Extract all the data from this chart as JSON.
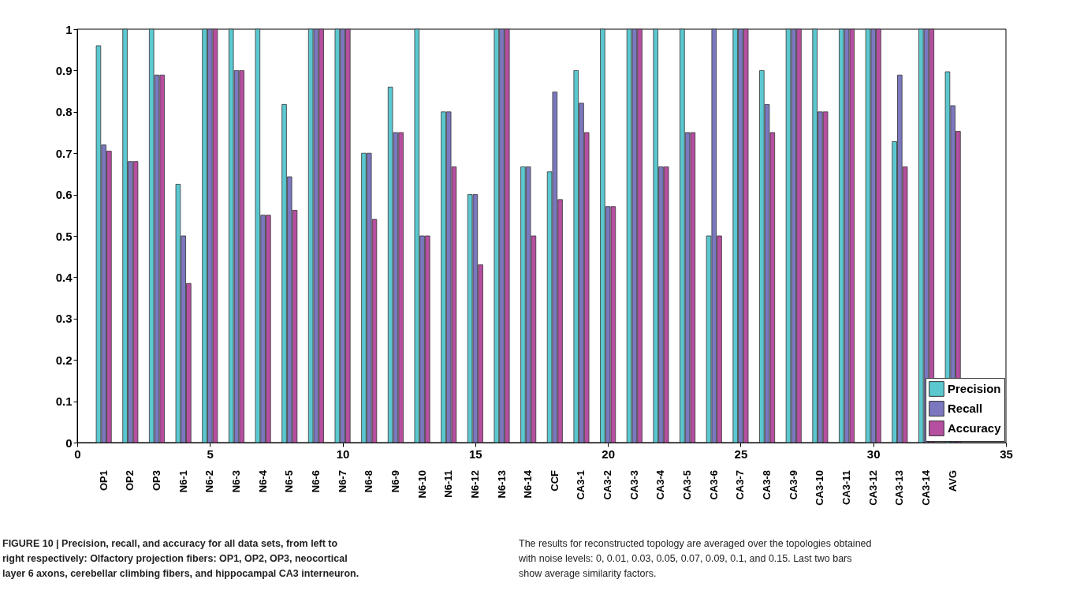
{
  "chart_data": {
    "type": "bar",
    "title": "FIGURE 10 | Precision, recall, and accuracy for all data sets, from left to right respectively: Olfactory projection fibers: OP1, OP2, OP3, neocortical layer 6 axons, cerebellar climbing fibers, and hippocampal CA3 interneuron.",
    "annotations": [
      "OP1",
      "OP2",
      "OP3",
      "N6-1",
      "N6-2",
      "N6-3",
      "N6-4",
      "N6-5",
      "N6-6",
      "N6-7",
      "N6-8",
      "N6-9",
      "N6-10",
      "N6-11",
      "N6-12",
      "N6-13",
      "N6-14",
      "CCF",
      "CA3-1",
      "CA3-2",
      "CA3-3",
      "CA3-4",
      "CA3-5",
      "CA3-6",
      "CA3-7",
      "CA3-8",
      "CA3-9",
      "CA3-10",
      "CA3-11",
      "CA3-12",
      "CA3-13",
      "CA3-14",
      "AVG",
      "The results for reconstructed topology are averaged over the topologies obtained with noise levels: 0, 0.01, 0.03, 0.05, 0.07, 0.09, 0.1, and 0.15. Last two bars show average similarity factors."
    ],
    "x": [
      1,
      2,
      3,
      4,
      5,
      6,
      7,
      8,
      9,
      10,
      11,
      12,
      13,
      14,
      15,
      16,
      17,
      18,
      19,
      20,
      21,
      22,
      23,
      24,
      25,
      26,
      27,
      28,
      29,
      30,
      31,
      32,
      33
    ],
    "series": [
      {
        "name": "Precision",
        "color": "#5bc8d0",
        "values": [
          0.96,
          1,
          1,
          0.625,
          1,
          1,
          1,
          0.818,
          1,
          1,
          0.7,
          0.86,
          1,
          0.8,
          0.6,
          1,
          0.667,
          0.655,
          0.9,
          1,
          1,
          1,
          1,
          0.5,
          1,
          0.9,
          1,
          1,
          1,
          1,
          0.728,
          1,
          0.897
        ]
      },
      {
        "name": "Recall",
        "color": "#7b78bf",
        "values": [
          0.72,
          0.68,
          0.889,
          0.5,
          1,
          0.9,
          0.55,
          0.643,
          1,
          1,
          0.7,
          0.75,
          0.5,
          0.8,
          0.6,
          1,
          0.667,
          0.848,
          0.821,
          0.571,
          1,
          0.667,
          0.75,
          1,
          1,
          0.818,
          1,
          0.8,
          1,
          1,
          0.889,
          1,
          0.815
        ]
      },
      {
        "name": "Accuracy",
        "color": "#b64fa0",
        "values": [
          0.705,
          0.68,
          0.889,
          0.385,
          1,
          0.9,
          0.55,
          0.562,
          1,
          1,
          0.54,
          0.75,
          0.5,
          0.667,
          0.43,
          1,
          0.5,
          0.588,
          0.75,
          0.571,
          1,
          0.667,
          0.75,
          0.5,
          1,
          0.75,
          1,
          0.8,
          1,
          1,
          0.667,
          1,
          0.753
        ]
      }
    ],
    "xlim": [
      0,
      35
    ],
    "xticks": [
      0,
      5,
      10,
      15,
      20,
      25,
      30,
      35
    ],
    "ylim": [
      0,
      1
    ],
    "yticks": [
      0,
      0.1,
      0.2,
      0.3,
      0.4,
      0.5,
      0.6,
      0.7,
      0.8,
      0.9,
      1
    ],
    "legend": "bottom right",
    "grid": false
  }
}
